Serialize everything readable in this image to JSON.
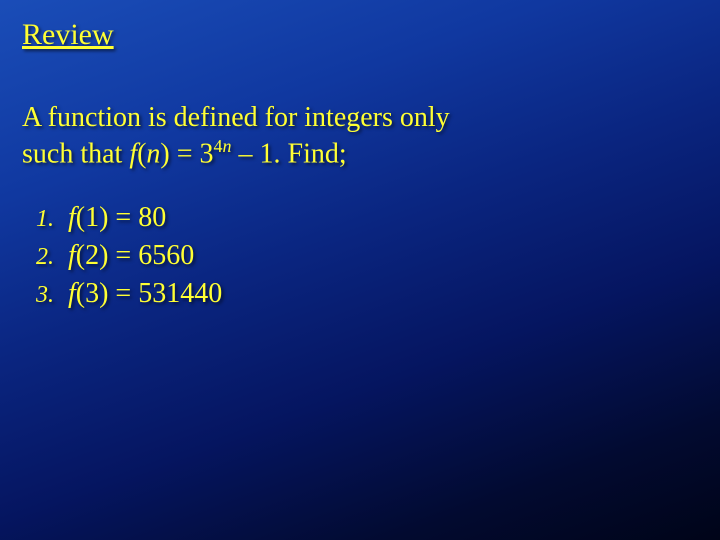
{
  "title": "Review",
  "intro_line1": "A function is defined for integers only",
  "intro_prefix": "such that ",
  "intro_fn_f": "f",
  "intro_fn_open": "(",
  "intro_fn_var": "n",
  "intro_fn_close": ") = 3",
  "intro_exp_num": "4",
  "intro_exp_var": "n",
  "intro_suffix": " – 1. Find;",
  "items": [
    {
      "num": "1.",
      "f": "f",
      "rest": "(1) = 80"
    },
    {
      "num": "2.",
      "f": "f",
      "rest": "(2) = 6560"
    },
    {
      "num": "3.",
      "f": "f",
      "rest": "(3) = 531440"
    }
  ],
  "colors": {
    "text": "#ffff33",
    "bg_top": "#1a4db8",
    "bg_bottom": "#000418"
  }
}
